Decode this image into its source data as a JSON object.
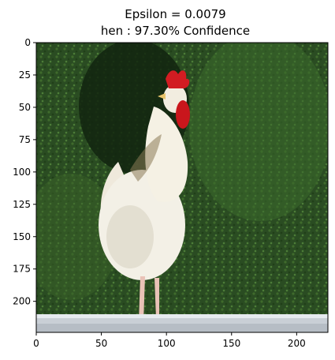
{
  "figure": {
    "title_line1": "Epsilon = 0.0079",
    "title_line2": "hen : 97.30% Confidence"
  },
  "image": {
    "subject": "white rooster with red comb standing on a stone wall",
    "background": "dense green foliage",
    "colors": {
      "foliage_dark": "#1f3b1a",
      "foliage_mid": "#2f5a24",
      "foliage_light": "#4a7a35",
      "feather": "#f3f0e6",
      "feather_shadow": "#d9d3c3",
      "comb": "#d21c22",
      "beak": "#e6c36a",
      "wall": "#c9cfd6",
      "legs": "#e9c2b7"
    }
  },
  "axes": {
    "x_ticks": [
      "0",
      "50",
      "100",
      "150",
      "200"
    ],
    "y_ticks": [
      "0",
      "25",
      "50",
      "75",
      "100",
      "125",
      "150",
      "175",
      "200"
    ]
  }
}
